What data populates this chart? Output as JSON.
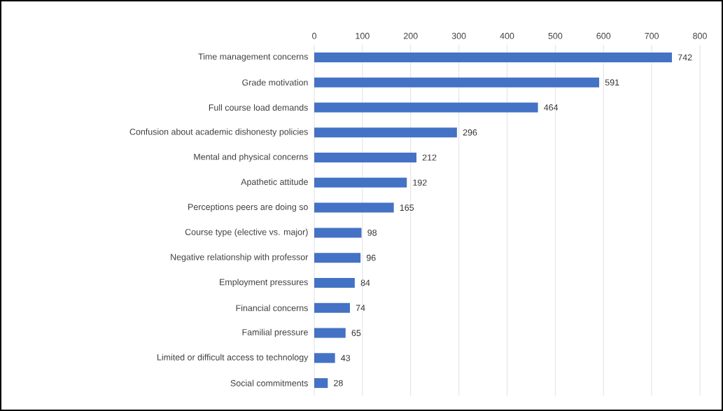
{
  "chart_data": {
    "type": "bar",
    "orientation": "horizontal",
    "categories": [
      "Time management concerns",
      "Grade motivation",
      "Full course load demands",
      "Confusion about academic dishonesty policies",
      "Mental and physical concerns",
      "Apathetic attitude",
      "Perceptions peers are doing so",
      "Course type (elective vs. major)",
      "Negative relationship with professor",
      "Employment pressures",
      "Financial concerns",
      "Familial pressure",
      "Limited or difficult access to technology",
      "Social commitments"
    ],
    "values": [
      742,
      591,
      464,
      296,
      212,
      192,
      165,
      98,
      96,
      84,
      74,
      65,
      43,
      28
    ],
    "color": "#4472c4",
    "xlim": [
      0,
      800
    ],
    "xticks": [
      0,
      100,
      200,
      300,
      400,
      500,
      600,
      700,
      800
    ],
    "grid": "x",
    "data_labels": true
  }
}
